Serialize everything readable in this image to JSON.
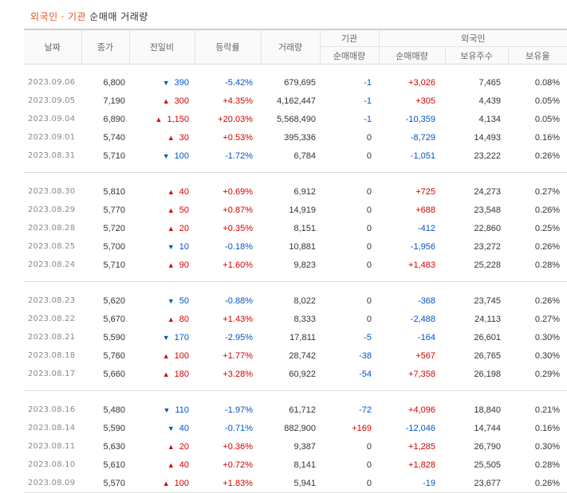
{
  "title": {
    "foreign": "외국인",
    "sep": "·",
    "institution": "기관",
    "rest": "순매매 거래량"
  },
  "headers": {
    "date": "날짜",
    "close": "종가",
    "change": "전일비",
    "rate": "등락률",
    "volume": "거래량",
    "institution_group": "기관",
    "institution_net": "순매매량",
    "foreign_group": "외국인",
    "foreign_net": "순매매량",
    "foreign_hold": "보유주수",
    "foreign_ratio": "보유율"
  },
  "groups": [
    [
      {
        "date": "2023.09.06",
        "close": "6,800",
        "dir": "down",
        "arrow": "▼",
        "change": "390",
        "rate": "-5.42%",
        "volume": "679,695",
        "inst": "-1",
        "fnet": "+3,026",
        "hold": "7,465",
        "ratio": "0.08%"
      },
      {
        "date": "2023.09.05",
        "close": "7,190",
        "dir": "up",
        "arrow": "▲",
        "change": "300",
        "rate": "+4.35%",
        "volume": "4,162,447",
        "inst": "-1",
        "fnet": "+305",
        "hold": "4,439",
        "ratio": "0.05%"
      },
      {
        "date": "2023.09.04",
        "close": "6,890",
        "dir": "up",
        "arrow": "▲",
        "change": "1,150",
        "rate": "+20.03%",
        "volume": "5,568,490",
        "inst": "-1",
        "fnet": "-10,359",
        "hold": "4,134",
        "ratio": "0.05%"
      },
      {
        "date": "2023.09.01",
        "close": "5,740",
        "dir": "up",
        "arrow": "▲",
        "change": "30",
        "rate": "+0.53%",
        "volume": "395,336",
        "inst": "0",
        "fnet": "-8,729",
        "hold": "14,493",
        "ratio": "0.16%"
      },
      {
        "date": "2023.08.31",
        "close": "5,710",
        "dir": "down",
        "arrow": "▼",
        "change": "100",
        "rate": "-1.72%",
        "volume": "6,784",
        "inst": "0",
        "fnet": "-1,051",
        "hold": "23,222",
        "ratio": "0.26%"
      }
    ],
    [
      {
        "date": "2023.08.30",
        "close": "5,810",
        "dir": "up",
        "arrow": "▲",
        "change": "40",
        "rate": "+0.69%",
        "volume": "6,912",
        "inst": "0",
        "fnet": "+725",
        "hold": "24,273",
        "ratio": "0.27%"
      },
      {
        "date": "2023.08.29",
        "close": "5,770",
        "dir": "up",
        "arrow": "▲",
        "change": "50",
        "rate": "+0.87%",
        "volume": "14,919",
        "inst": "0",
        "fnet": "+688",
        "hold": "23,548",
        "ratio": "0.26%"
      },
      {
        "date": "2023.08.28",
        "close": "5,720",
        "dir": "up",
        "arrow": "▲",
        "change": "20",
        "rate": "+0.35%",
        "volume": "8,151",
        "inst": "0",
        "fnet": "-412",
        "hold": "22,860",
        "ratio": "0.25%"
      },
      {
        "date": "2023.08.25",
        "close": "5,700",
        "dir": "down",
        "arrow": "▼",
        "change": "10",
        "rate": "-0.18%",
        "volume": "10,881",
        "inst": "0",
        "fnet": "-1,956",
        "hold": "23,272",
        "ratio": "0.26%"
      },
      {
        "date": "2023.08.24",
        "close": "5,710",
        "dir": "up",
        "arrow": "▲",
        "change": "90",
        "rate": "+1.60%",
        "volume": "9,823",
        "inst": "0",
        "fnet": "+1,483",
        "hold": "25,228",
        "ratio": "0.28%"
      }
    ],
    [
      {
        "date": "2023.08.23",
        "close": "5,620",
        "dir": "down",
        "arrow": "▼",
        "change": "50",
        "rate": "-0.88%",
        "volume": "8,022",
        "inst": "0",
        "fnet": "-368",
        "hold": "23,745",
        "ratio": "0.26%"
      },
      {
        "date": "2023.08.22",
        "close": "5,670",
        "dir": "up",
        "arrow": "▲",
        "change": "80",
        "rate": "+1.43%",
        "volume": "8,333",
        "inst": "0",
        "fnet": "-2,488",
        "hold": "24,113",
        "ratio": "0.27%"
      },
      {
        "date": "2023.08.21",
        "close": "5,590",
        "dir": "down",
        "arrow": "▼",
        "change": "170",
        "rate": "-2.95%",
        "volume": "17,811",
        "inst": "-5",
        "fnet": "-164",
        "hold": "26,601",
        "ratio": "0.30%"
      },
      {
        "date": "2023.08.18",
        "close": "5,760",
        "dir": "up",
        "arrow": "▲",
        "change": "100",
        "rate": "+1.77%",
        "volume": "28,742",
        "inst": "-38",
        "fnet": "+567",
        "hold": "26,765",
        "ratio": "0.30%"
      },
      {
        "date": "2023.08.17",
        "close": "5,660",
        "dir": "up",
        "arrow": "▲",
        "change": "180",
        "rate": "+3.28%",
        "volume": "60,922",
        "inst": "-54",
        "fnet": "+7,358",
        "hold": "26,198",
        "ratio": "0.29%"
      }
    ],
    [
      {
        "date": "2023.08.16",
        "close": "5,480",
        "dir": "down",
        "arrow": "▼",
        "change": "110",
        "rate": "-1.97%",
        "volume": "61,712",
        "inst": "-72",
        "fnet": "+4,096",
        "hold": "18,840",
        "ratio": "0.21%"
      },
      {
        "date": "2023.08.14",
        "close": "5,590",
        "dir": "down",
        "arrow": "▼",
        "change": "40",
        "rate": "-0.71%",
        "volume": "882,900",
        "inst": "+169",
        "fnet": "-12,046",
        "hold": "14,744",
        "ratio": "0.16%"
      },
      {
        "date": "2023.08.11",
        "close": "5,630",
        "dir": "up",
        "arrow": "▲",
        "change": "20",
        "rate": "+0.36%",
        "volume": "9,387",
        "inst": "0",
        "fnet": "+1,285",
        "hold": "26,790",
        "ratio": "0.30%"
      },
      {
        "date": "2023.08.10",
        "close": "5,610",
        "dir": "up",
        "arrow": "▲",
        "change": "40",
        "rate": "+0.72%",
        "volume": "8,141",
        "inst": "0",
        "fnet": "+1,828",
        "hold": "25,505",
        "ratio": "0.28%"
      },
      {
        "date": "2023.08.09",
        "close": "5,570",
        "dir": "up",
        "arrow": "▲",
        "change": "100",
        "rate": "+1.83%",
        "volume": "5,941",
        "inst": "0",
        "fnet": "-19",
        "hold": "23,677",
        "ratio": "0.26%"
      }
    ]
  ],
  "colors": {
    "up": "#d60000",
    "down": "#0055c8",
    "accent": "#e8501f",
    "date": "#8a8a8a"
  }
}
